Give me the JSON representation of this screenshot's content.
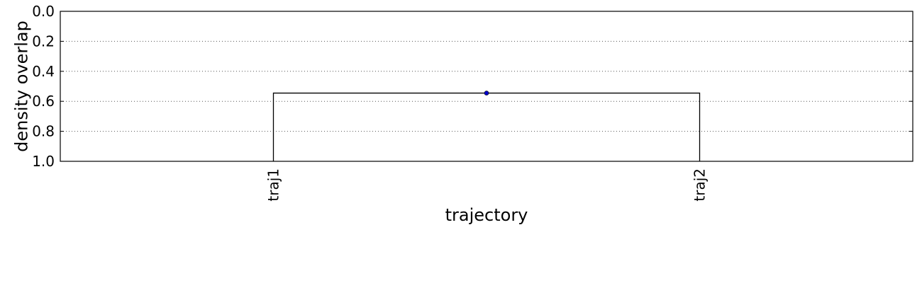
{
  "chart_data": {
    "type": "dendrogram",
    "xlabel": "trajectory",
    "ylabel": "density overlap",
    "leaves": [
      "traj1",
      "traj2"
    ],
    "merges": [
      {
        "left": "traj1",
        "right": "traj2",
        "height": 0.545
      }
    ],
    "ylim": [
      0.0,
      1.0
    ],
    "y_inverted": true,
    "yticks": [
      0.0,
      0.2,
      0.4,
      0.6,
      0.8,
      1.0
    ],
    "ytick_labels": [
      "0.0",
      "0.2",
      "0.4",
      "0.6",
      "0.8",
      "1.0"
    ],
    "grid": "horizontal dotted",
    "line_color": "#000000",
    "marker_color": "#0000cc"
  }
}
